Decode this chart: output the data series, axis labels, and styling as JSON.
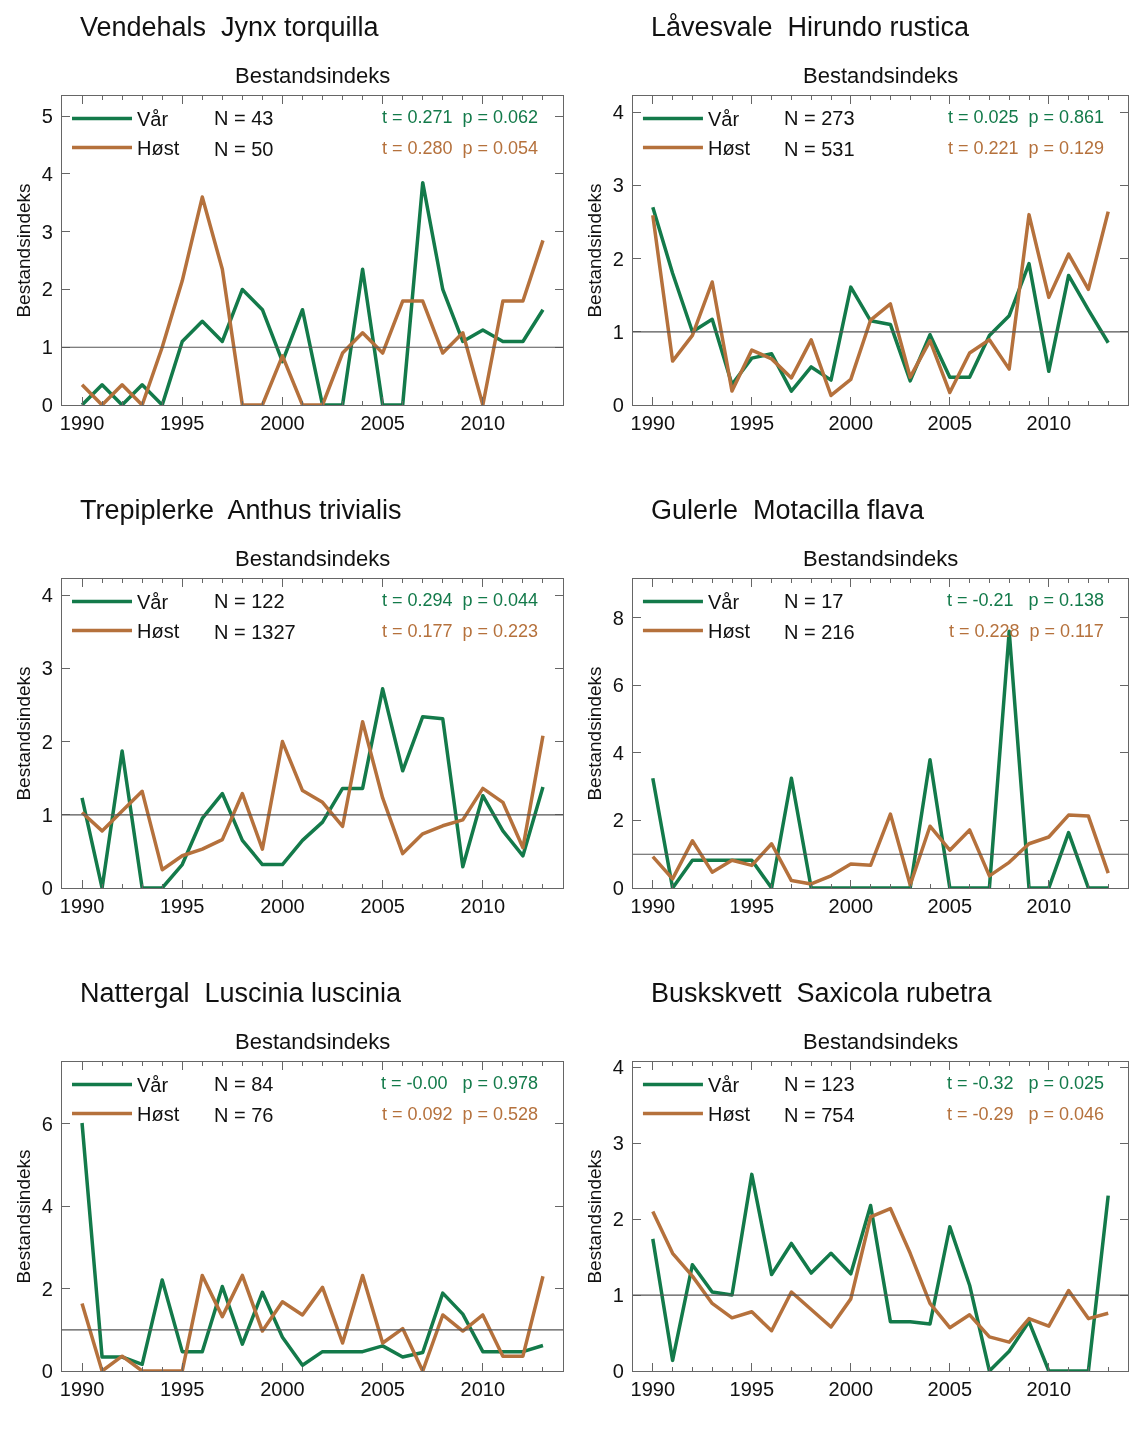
{
  "chart_data": [
    {
      "type": "line",
      "title": "Vendehals  Jynx torquilla",
      "subtitle": "Bestandsindeks",
      "ylabel": "Bestandsindeks",
      "x": [
        1990,
        1991,
        1992,
        1993,
        1994,
        1995,
        1996,
        1997,
        1998,
        1999,
        2000,
        2001,
        2002,
        2003,
        2004,
        2005,
        2006,
        2007,
        2008,
        2009,
        2010,
        2011,
        2012,
        2013
      ],
      "xlim": [
        1989,
        2014
      ],
      "xticks": [
        1990,
        1995,
        2000,
        2005,
        2010
      ],
      "ylim": [
        0,
        5.35
      ],
      "yticks": [
        0,
        1,
        2,
        3,
        4,
        5
      ],
      "grid": false,
      "legend": "top left",
      "marker": "none",
      "line_style": "solid",
      "series": [
        {
          "name": "Vår",
          "color": "#137a4a",
          "values": [
            0,
            0.35,
            0,
            0.35,
            0,
            1.1,
            1.45,
            1.1,
            2.0,
            1.65,
            0.75,
            1.65,
            0,
            0,
            2.35,
            0,
            0,
            3.85,
            2.0,
            1.1,
            1.3,
            1.1,
            1.1,
            1.65
          ]
        },
        {
          "name": "Høst",
          "color": "#b5713c",
          "values": [
            0.35,
            0,
            0.35,
            0,
            1.0,
            2.15,
            3.6,
            2.35,
            0,
            0,
            0.85,
            0,
            0,
            0.9,
            1.25,
            0.9,
            1.8,
            1.8,
            0.9,
            1.25,
            0,
            1.8,
            1.8,
            2.85
          ]
        }
      ],
      "ref_lines": [
        {
          "axis": "y",
          "value": 1,
          "color": "#555555"
        }
      ],
      "annotations": [
        "N = 43",
        "N = 50",
        "t = 0.271  p = 0.062",
        "t = 0.280  p = 0.054"
      ]
    },
    {
      "type": "line",
      "title": "Låvesvale  Hirundo rustica",
      "subtitle": "Bestandsindeks",
      "ylabel": "Bestandsindeks",
      "x": [
        1990,
        1991,
        1992,
        1993,
        1994,
        1995,
        1996,
        1997,
        1998,
        1999,
        2000,
        2001,
        2002,
        2003,
        2004,
        2005,
        2006,
        2007,
        2008,
        2009,
        2010,
        2011,
        2012,
        2013
      ],
      "xlim": [
        1989,
        2014
      ],
      "xticks": [
        1990,
        1995,
        2000,
        2005,
        2010
      ],
      "ylim": [
        0,
        4.22
      ],
      "yticks": [
        0,
        1,
        2,
        3,
        4
      ],
      "grid": false,
      "legend": "top left",
      "marker": "none",
      "line_style": "solid",
      "series": [
        {
          "name": "Vår",
          "color": "#137a4a",
          "values": [
            2.7,
            1.8,
            1.0,
            1.17,
            0.28,
            0.64,
            0.7,
            0.19,
            0.52,
            0.34,
            1.61,
            1.15,
            1.1,
            0.33,
            0.96,
            0.38,
            0.38,
            0.95,
            1.22,
            1.93,
            0.46,
            1.77,
            1.3,
            0.85
          ]
        },
        {
          "name": "Høst",
          "color": "#b5713c",
          "values": [
            2.59,
            0.6,
            0.95,
            1.68,
            0.19,
            0.75,
            0.63,
            0.37,
            0.89,
            0.13,
            0.35,
            1.16,
            1.38,
            0.38,
            0.88,
            0.17,
            0.71,
            0.89,
            0.49,
            2.6,
            1.47,
            2.06,
            1.58,
            2.64
          ]
        }
      ],
      "ref_lines": [
        {
          "axis": "y",
          "value": 1,
          "color": "#555555"
        }
      ],
      "annotations": [
        "N = 273",
        "N = 531",
        "t = 0.025  p = 0.861",
        "t = 0.221  p = 0.129"
      ]
    },
    {
      "type": "line",
      "title": "Trepiplerke  Anthus trivialis",
      "subtitle": "Bestandsindeks",
      "ylabel": "Bestandsindeks",
      "x": [
        1990,
        1991,
        1992,
        1993,
        1994,
        1995,
        1996,
        1997,
        1998,
        1999,
        2000,
        2001,
        2002,
        2003,
        2004,
        2005,
        2006,
        2007,
        2008,
        2009,
        2010,
        2011,
        2012,
        2013
      ],
      "xlim": [
        1989,
        2014
      ],
      "xticks": [
        1990,
        1995,
        2000,
        2005,
        2010
      ],
      "ylim": [
        0,
        4.22
      ],
      "yticks": [
        0,
        1,
        2,
        3,
        4
      ],
      "grid": false,
      "legend": "top left",
      "marker": "none",
      "line_style": "solid",
      "series": [
        {
          "name": "Vår",
          "color": "#137a4a",
          "values": [
            1.23,
            0,
            1.87,
            0,
            0,
            0.32,
            0.95,
            1.29,
            0.65,
            0.32,
            0.32,
            0.65,
            0.9,
            1.36,
            1.36,
            2.72,
            1.6,
            2.34,
            2.31,
            0.29,
            1.26,
            0.78,
            0.44,
            1.38
          ]
        },
        {
          "name": "Høst",
          "color": "#b5713c",
          "values": [
            1.03,
            0.78,
            1.05,
            1.32,
            0.25,
            0.44,
            0.53,
            0.66,
            1.29,
            0.53,
            2.0,
            1.33,
            1.17,
            0.84,
            2.27,
            1.23,
            0.47,
            0.74,
            0.85,
            0.93,
            1.36,
            1.17,
            0.55,
            2.08
          ]
        }
      ],
      "ref_lines": [
        {
          "axis": "y",
          "value": 1,
          "color": "#555555"
        }
      ],
      "annotations": [
        "N = 122",
        "N = 1327",
        "t = 0.294  p = 0.044",
        "t = 0.177  p = 0.223"
      ]
    },
    {
      "type": "line",
      "title": "Gulerle  Motacilla flava",
      "subtitle": "Bestandsindeks",
      "ylabel": "Bestandsindeks",
      "x": [
        1990,
        1991,
        1992,
        1993,
        1994,
        1995,
        1996,
        1997,
        1998,
        1999,
        2000,
        2001,
        2002,
        2003,
        2004,
        2005,
        2006,
        2007,
        2008,
        2009,
        2010,
        2011,
        2012,
        2013
      ],
      "xlim": [
        1989,
        2014
      ],
      "xticks": [
        1990,
        1995,
        2000,
        2005,
        2010
      ],
      "ylim": [
        0,
        9.15
      ],
      "yticks": [
        0,
        2,
        4,
        6,
        8
      ],
      "grid": false,
      "legend": "top left",
      "marker": "none",
      "line_style": "solid",
      "series": [
        {
          "name": "Vår",
          "color": "#137a4a",
          "values": [
            3.25,
            0,
            0.82,
            0.82,
            0.82,
            0.82,
            0,
            3.25,
            0,
            0,
            0,
            0,
            0,
            0,
            3.8,
            0,
            0,
            0,
            7.6,
            0,
            0,
            1.64,
            0,
            0
          ]
        },
        {
          "name": "Høst",
          "color": "#b5713c",
          "values": [
            0.93,
            0.27,
            1.4,
            0.47,
            0.82,
            0.67,
            1.31,
            0.22,
            0.12,
            0.36,
            0.71,
            0.67,
            2.19,
            0.09,
            1.83,
            1.12,
            1.72,
            0.36,
            0.76,
            1.31,
            1.51,
            2.16,
            2.13,
            0.44
          ]
        }
      ],
      "ref_lines": [
        {
          "axis": "y",
          "value": 1,
          "color": "#555555"
        }
      ],
      "annotations": [
        "N = 17",
        "N = 216",
        "t = -0.21   p = 0.138",
        "t = 0.228  p = 0.117"
      ]
    },
    {
      "type": "line",
      "title": "Nattergal  Luscinia luscinia",
      "subtitle": "Bestandsindeks",
      "ylabel": "Bestandsindeks",
      "x": [
        1990,
        1991,
        1992,
        1993,
        1994,
        1995,
        1996,
        1997,
        1998,
        1999,
        2000,
        2001,
        2002,
        2003,
        2004,
        2005,
        2006,
        2007,
        2008,
        2009,
        2010,
        2011,
        2012,
        2013
      ],
      "xlim": [
        1989,
        2014
      ],
      "xticks": [
        1990,
        1995,
        2000,
        2005,
        2010
      ],
      "ylim": [
        0,
        7.5
      ],
      "yticks": [
        0,
        2,
        4,
        6
      ],
      "grid": false,
      "legend": "top left",
      "marker": "none",
      "line_style": "solid",
      "series": [
        {
          "name": "Vår",
          "color": "#137a4a",
          "values": [
            6.02,
            0.34,
            0.34,
            0.16,
            2.21,
            0.47,
            0.47,
            2.05,
            0.65,
            1.91,
            0.82,
            0.14,
            0.47,
            0.47,
            0.47,
            0.61,
            0.34,
            0.45,
            1.89,
            1.38,
            0.47,
            0.47,
            0.47,
            0.62
          ]
        },
        {
          "name": "Høst",
          "color": "#b5713c",
          "values": [
            1.64,
            0,
            0.36,
            0,
            0,
            0,
            2.32,
            1.32,
            2.32,
            0.97,
            1.68,
            1.36,
            2.03,
            0.68,
            2.32,
            0.68,
            1.03,
            0,
            1.36,
            0.97,
            1.36,
            0.36,
            0.36,
            2.3
          ]
        }
      ],
      "ref_lines": [
        {
          "axis": "y",
          "value": 1,
          "color": "#555555"
        }
      ],
      "annotations": [
        "N = 84",
        "N = 76",
        "t = -0.00   p = 0.978",
        "t = 0.092  p = 0.528"
      ]
    },
    {
      "type": "line",
      "title": "Buskskvett  Saxicola rubetra",
      "subtitle": "Bestandsindeks",
      "ylabel": "Bestandsindeks",
      "x": [
        1990,
        1991,
        1992,
        1993,
        1994,
        1995,
        1996,
        1997,
        1998,
        1999,
        2000,
        2001,
        2002,
        2003,
        2004,
        2005,
        2006,
        2007,
        2008,
        2009,
        2010,
        2011,
        2012,
        2013
      ],
      "xlim": [
        1989,
        2014
      ],
      "xticks": [
        1990,
        1995,
        2000,
        2005,
        2010
      ],
      "ylim": [
        0,
        4.07
      ],
      "yticks": [
        0,
        1,
        2,
        3,
        4
      ],
      "grid": false,
      "legend": "top left",
      "marker": "none",
      "line_style": "solid",
      "series": [
        {
          "name": "Vår",
          "color": "#137a4a",
          "values": [
            1.74,
            0.14,
            1.4,
            1.04,
            1.0,
            2.59,
            1.27,
            1.68,
            1.29,
            1.55,
            1.28,
            2.18,
            0.65,
            0.65,
            0.62,
            1.9,
            1.13,
            0,
            0.26,
            0.65,
            0,
            0,
            0,
            2.31
          ]
        },
        {
          "name": "Høst",
          "color": "#b5713c",
          "values": [
            2.1,
            1.55,
            1.25,
            0.89,
            0.7,
            0.78,
            0.53,
            1.04,
            0.81,
            0.58,
            0.95,
            2.03,
            2.14,
            1.55,
            0.89,
            0.57,
            0.74,
            0.45,
            0.38,
            0.69,
            0.59,
            1.06,
            0.69,
            0.76
          ]
        }
      ],
      "ref_lines": [
        {
          "axis": "y",
          "value": 1,
          "color": "#555555"
        }
      ],
      "annotations": [
        "N = 123",
        "N = 754",
        "t = -0.32   p = 0.025",
        "t = -0.29   p = 0.046"
      ]
    }
  ]
}
